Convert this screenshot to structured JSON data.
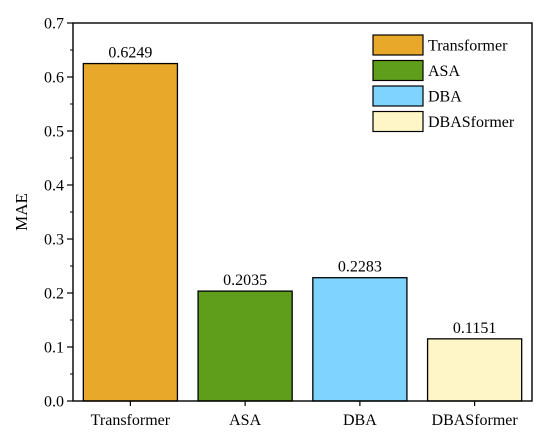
{
  "chart_data": {
    "type": "bar",
    "categories": [
      "Transformer",
      "ASA",
      "DBA",
      "DBASformer"
    ],
    "values": [
      0.6249,
      0.2035,
      0.2283,
      0.1151
    ],
    "value_labels": [
      "0.6249",
      "0.2035",
      "0.2283",
      "0.1151"
    ],
    "title": "",
    "xlabel": "",
    "ylabel": "MAE",
    "ylim": [
      0,
      0.7
    ],
    "yticks": [
      0.0,
      0.1,
      0.2,
      0.3,
      0.4,
      0.5,
      0.6,
      0.7
    ],
    "ytick_labels": [
      "0.0",
      "0.1",
      "0.2",
      "0.3",
      "0.4",
      "0.5",
      "0.6",
      "0.7"
    ],
    "colors": [
      "#E8A92B",
      "#5E9E1A",
      "#7FD4FF",
      "#FFF6C7"
    ],
    "grid": false,
    "legend": {
      "position": "top-right",
      "entries": [
        "Transformer",
        "ASA",
        "DBA",
        "DBASformer"
      ]
    }
  }
}
